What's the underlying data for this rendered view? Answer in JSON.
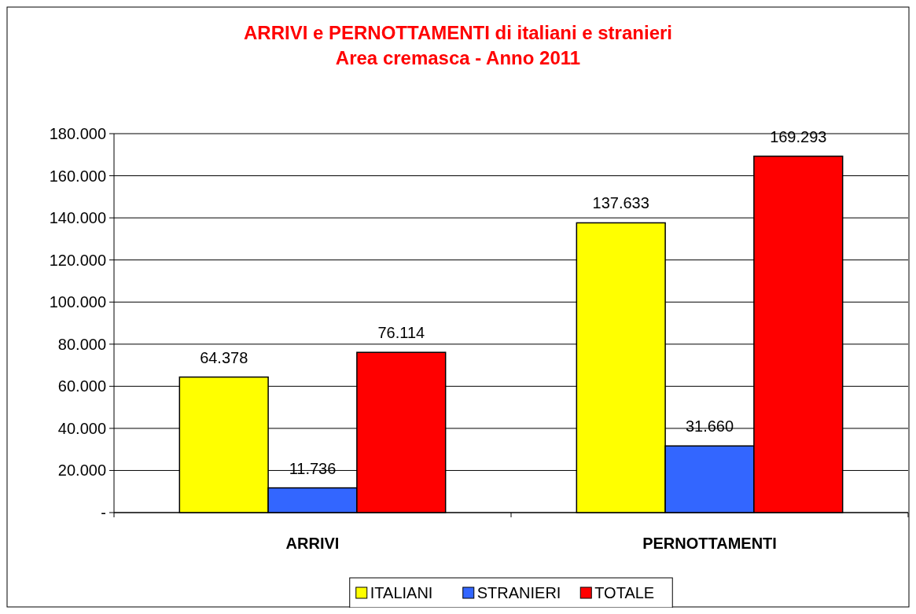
{
  "chart_data": {
    "type": "bar",
    "title": "ARRIVI e PERNOTTAMENTI di italiani e stranieri",
    "subtitle": "Area cremasca - Anno 2011",
    "categories": [
      "ARRIVI",
      "PERNOTTAMENTI"
    ],
    "series": [
      {
        "name": "ITALIANI",
        "color": "#ffff00",
        "values": [
          64378,
          137633
        ],
        "value_labels": [
          "64.378",
          "137.633"
        ]
      },
      {
        "name": "STRANIERI",
        "color": "#3366ff",
        "values": [
          11736,
          31660
        ],
        "value_labels": [
          "11.736",
          "31.660"
        ]
      },
      {
        "name": "TOTALE",
        "color": "#ff0000",
        "values": [
          76114,
          169293
        ],
        "value_labels": [
          "76.114",
          "169.293"
        ]
      }
    ],
    "ylim": [
      0,
      180000
    ],
    "yticks": [
      {
        "value": 0,
        "label": "-"
      },
      {
        "value": 20000,
        "label": "20.000"
      },
      {
        "value": 40000,
        "label": "40.000"
      },
      {
        "value": 60000,
        "label": "60.000"
      },
      {
        "value": 80000,
        "label": "80.000"
      },
      {
        "value": 100000,
        "label": "100.000"
      },
      {
        "value": 120000,
        "label": "120.000"
      },
      {
        "value": 140000,
        "label": "140.000"
      },
      {
        "value": 160000,
        "label": "160.000"
      },
      {
        "value": 180000,
        "label": "180.000"
      }
    ],
    "grid": "y",
    "legend": "bottom"
  }
}
